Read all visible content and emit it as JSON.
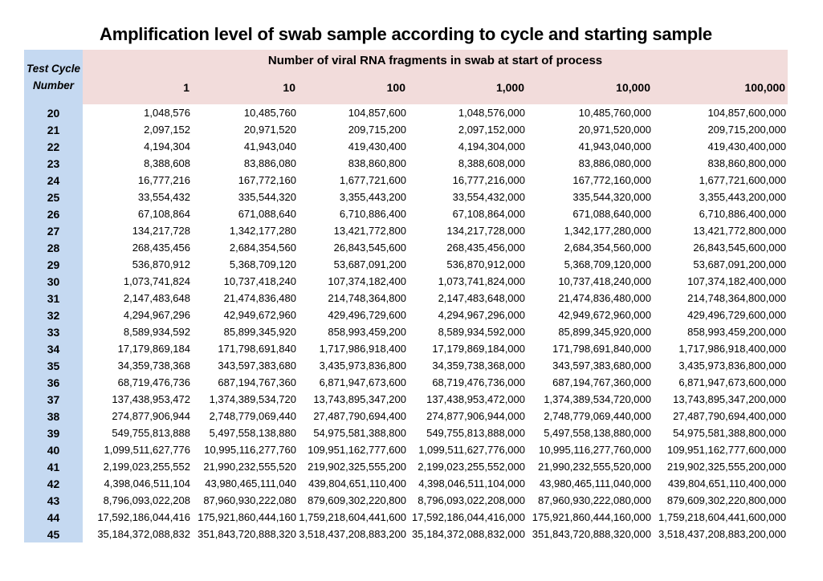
{
  "colors": {
    "start_header_fill": "#F2DCDB",
    "cycle_header_fill": "#C5D9F1",
    "data_fill": "#FFFFFF",
    "text": "#000000"
  },
  "chart_data": {
    "type": "table",
    "title": "Amplification level of swab sample according to cycle and starting sample",
    "column_group_header": "Number of viral RNA fragments in swab at start of process",
    "row_header_line1": "Test Cycle",
    "row_header_line2": "Number",
    "columns": [
      "1",
      "10",
      "100",
      "1,000",
      "10,000",
      "100,000"
    ],
    "rows": [
      {
        "cycle": "20",
        "values": [
          "1,048,576",
          "10,485,760",
          "104,857,600",
          "1,048,576,000",
          "10,485,760,000",
          "104,857,600,000"
        ]
      },
      {
        "cycle": "21",
        "values": [
          "2,097,152",
          "20,971,520",
          "209,715,200",
          "2,097,152,000",
          "20,971,520,000",
          "209,715,200,000"
        ]
      },
      {
        "cycle": "22",
        "values": [
          "4,194,304",
          "41,943,040",
          "419,430,400",
          "4,194,304,000",
          "41,943,040,000",
          "419,430,400,000"
        ]
      },
      {
        "cycle": "23",
        "values": [
          "8,388,608",
          "83,886,080",
          "838,860,800",
          "8,388,608,000",
          "83,886,080,000",
          "838,860,800,000"
        ]
      },
      {
        "cycle": "24",
        "values": [
          "16,777,216",
          "167,772,160",
          "1,677,721,600",
          "16,777,216,000",
          "167,772,160,000",
          "1,677,721,600,000"
        ]
      },
      {
        "cycle": "25",
        "values": [
          "33,554,432",
          "335,544,320",
          "3,355,443,200",
          "33,554,432,000",
          "335,544,320,000",
          "3,355,443,200,000"
        ]
      },
      {
        "cycle": "26",
        "values": [
          "67,108,864",
          "671,088,640",
          "6,710,886,400",
          "67,108,864,000",
          "671,088,640,000",
          "6,710,886,400,000"
        ]
      },
      {
        "cycle": "27",
        "values": [
          "134,217,728",
          "1,342,177,280",
          "13,421,772,800",
          "134,217,728,000",
          "1,342,177,280,000",
          "13,421,772,800,000"
        ]
      },
      {
        "cycle": "28",
        "values": [
          "268,435,456",
          "2,684,354,560",
          "26,843,545,600",
          "268,435,456,000",
          "2,684,354,560,000",
          "26,843,545,600,000"
        ]
      },
      {
        "cycle": "29",
        "values": [
          "536,870,912",
          "5,368,709,120",
          "53,687,091,200",
          "536,870,912,000",
          "5,368,709,120,000",
          "53,687,091,200,000"
        ]
      },
      {
        "cycle": "30",
        "values": [
          "1,073,741,824",
          "10,737,418,240",
          "107,374,182,400",
          "1,073,741,824,000",
          "10,737,418,240,000",
          "107,374,182,400,000"
        ]
      },
      {
        "cycle": "31",
        "values": [
          "2,147,483,648",
          "21,474,836,480",
          "214,748,364,800",
          "2,147,483,648,000",
          "21,474,836,480,000",
          "214,748,364,800,000"
        ]
      },
      {
        "cycle": "32",
        "values": [
          "4,294,967,296",
          "42,949,672,960",
          "429,496,729,600",
          "4,294,967,296,000",
          "42,949,672,960,000",
          "429,496,729,600,000"
        ]
      },
      {
        "cycle": "33",
        "values": [
          "8,589,934,592",
          "85,899,345,920",
          "858,993,459,200",
          "8,589,934,592,000",
          "85,899,345,920,000",
          "858,993,459,200,000"
        ]
      },
      {
        "cycle": "34",
        "values": [
          "17,179,869,184",
          "171,798,691,840",
          "1,717,986,918,400",
          "17,179,869,184,000",
          "171,798,691,840,000",
          "1,717,986,918,400,000"
        ]
      },
      {
        "cycle": "35",
        "values": [
          "34,359,738,368",
          "343,597,383,680",
          "3,435,973,836,800",
          "34,359,738,368,000",
          "343,597,383,680,000",
          "3,435,973,836,800,000"
        ]
      },
      {
        "cycle": "36",
        "values": [
          "68,719,476,736",
          "687,194,767,360",
          "6,871,947,673,600",
          "68,719,476,736,000",
          "687,194,767,360,000",
          "6,871,947,673,600,000"
        ]
      },
      {
        "cycle": "37",
        "values": [
          "137,438,953,472",
          "1,374,389,534,720",
          "13,743,895,347,200",
          "137,438,953,472,000",
          "1,374,389,534,720,000",
          "13,743,895,347,200,000"
        ]
      },
      {
        "cycle": "38",
        "values": [
          "274,877,906,944",
          "2,748,779,069,440",
          "27,487,790,694,400",
          "274,877,906,944,000",
          "2,748,779,069,440,000",
          "27,487,790,694,400,000"
        ]
      },
      {
        "cycle": "39",
        "values": [
          "549,755,813,888",
          "5,497,558,138,880",
          "54,975,581,388,800",
          "549,755,813,888,000",
          "5,497,558,138,880,000",
          "54,975,581,388,800,000"
        ]
      },
      {
        "cycle": "40",
        "values": [
          "1,099,511,627,776",
          "10,995,116,277,760",
          "109,951,162,777,600",
          "1,099,511,627,776,000",
          "10,995,116,277,760,000",
          "109,951,162,777,600,000"
        ]
      },
      {
        "cycle": "41",
        "values": [
          "2,199,023,255,552",
          "21,990,232,555,520",
          "219,902,325,555,200",
          "2,199,023,255,552,000",
          "21,990,232,555,520,000",
          "219,902,325,555,200,000"
        ]
      },
      {
        "cycle": "42",
        "values": [
          "4,398,046,511,104",
          "43,980,465,111,040",
          "439,804,651,110,400",
          "4,398,046,511,104,000",
          "43,980,465,111,040,000",
          "439,804,651,110,400,000"
        ]
      },
      {
        "cycle": "43",
        "values": [
          "8,796,093,022,208",
          "87,960,930,222,080",
          "879,609,302,220,800",
          "8,796,093,022,208,000",
          "87,960,930,222,080,000",
          "879,609,302,220,800,000"
        ]
      },
      {
        "cycle": "44",
        "values": [
          "17,592,186,044,416",
          "175,921,860,444,160",
          "1,759,218,604,441,600",
          "17,592,186,044,416,000",
          "175,921,860,444,160,000",
          "1,759,218,604,441,600,000"
        ]
      },
      {
        "cycle": "45",
        "values": [
          "35,184,372,088,832",
          "351,843,720,888,320",
          "3,518,437,208,883,200",
          "35,184,372,088,832,000",
          "351,843,720,888,320,000",
          "3,518,437,208,883,200,000"
        ]
      }
    ]
  }
}
